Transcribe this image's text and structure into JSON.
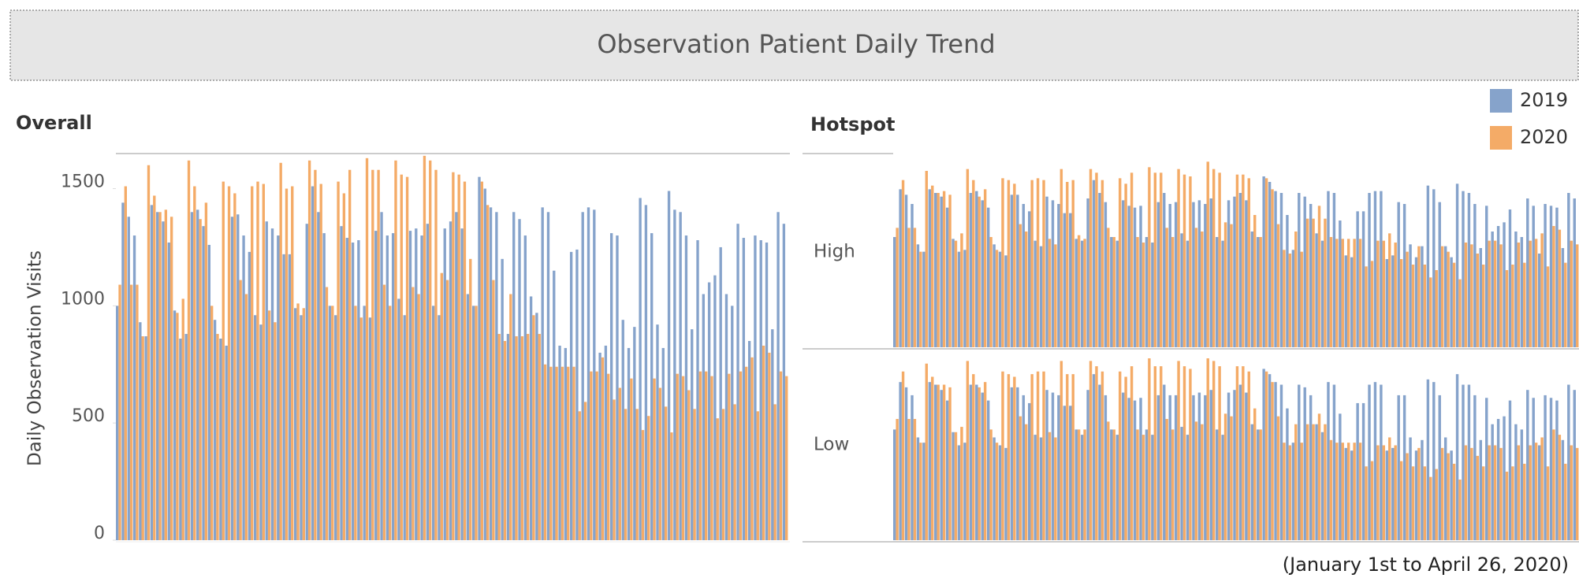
{
  "title": "Observation Patient Daily Trend",
  "note": "(January 1st to April 26, 2020)",
  "chart_data": [
    {
      "type": "bar",
      "title": "Overall",
      "y_label": "Daily Observation Visits",
      "ylim": [
        0,
        1700
      ],
      "yticks": [
        0,
        500,
        1000,
        1500
      ],
      "series": [
        {
          "name": "2019",
          "color": "#86a3cb",
          "values": [
            1000,
            1440,
            1380,
            1300,
            930,
            870,
            1430,
            1400,
            1360,
            1270,
            980,
            860,
            880,
            1400,
            1410,
            1340,
            1260,
            940,
            860,
            830,
            1380,
            1390,
            1300,
            1230,
            960,
            920,
            1360,
            1330,
            1300,
            1220,
            1220,
            990,
            960,
            1350,
            1510,
            1400,
            1310,
            1000,
            960,
            1340,
            1290,
            1270,
            1280,
            1000,
            950,
            1320,
            1400,
            1300,
            1310,
            1030,
            960,
            1320,
            1330,
            1300,
            1350,
            1000,
            960,
            1330,
            1360,
            1400,
            1330,
            1050,
            1000,
            1550,
            1500,
            1420,
            1400,
            1200,
            880,
            1400,
            1370,
            1300,
            1040,
            970,
            1420,
            1400,
            1150,
            830,
            820,
            1230,
            1240,
            1400,
            1420,
            1410,
            800,
            830,
            1310,
            1300,
            940,
            820,
            910,
            1460,
            1430,
            1310,
            920,
            820,
            1490,
            1410,
            1400,
            1300,
            900,
            1280,
            1050,
            1100,
            1130,
            1250,
            1050,
            1000,
            1350,
            1290,
            850,
            1300,
            1280,
            1270,
            900,
            1400,
            1350
          ]
        },
        {
          "name": "2020",
          "color": "#f4ab67",
          "values": [
            1090,
            1510,
            1090,
            1090,
            870,
            1600,
            1470,
            1400,
            1410,
            1380,
            970,
            1030,
            1620,
            1510,
            1370,
            1440,
            1000,
            880,
            1530,
            1510,
            1480,
            1110,
            1050,
            1510,
            1530,
            1520,
            980,
            930,
            1610,
            1500,
            1510,
            1010,
            990,
            1620,
            1580,
            1520,
            1080,
            1000,
            1530,
            1480,
            1580,
            1000,
            950,
            1630,
            1580,
            1580,
            1090,
            1000,
            1620,
            1560,
            1550,
            1080,
            1050,
            1640,
            1620,
            1580,
            1140,
            1110,
            1570,
            1560,
            1530,
            1200,
            1000,
            1530,
            1430,
            1110,
            880,
            850,
            1050,
            870,
            870,
            880,
            960,
            880,
            750,
            740,
            740,
            740,
            740,
            740,
            550,
            590,
            720,
            720,
            780,
            710,
            600,
            650,
            560,
            690,
            560,
            470,
            530,
            690,
            650,
            570,
            460,
            710,
            700,
            640,
            560,
            720,
            720,
            700,
            520,
            560,
            710,
            580,
            720,
            740,
            780,
            550,
            830,
            800,
            580,
            720,
            700
          ]
        }
      ]
    },
    {
      "type": "bar",
      "title": "Hotspot",
      "row": "High",
      "ylim": [
        0,
        1050
      ],
      "series": [
        {
          "color": "#86a3cb",
          "values": [
            600,
            860,
            830,
            780,
            560,
            520,
            860,
            840,
            820,
            760,
            590,
            520,
            530,
            840,
            850,
            800,
            760,
            560,
            520,
            500,
            830,
            830,
            780,
            740,
            580,
            550,
            820,
            800,
            780,
            730,
            730,
            590,
            580,
            810,
            910,
            840,
            790,
            600,
            580,
            800,
            770,
            760,
            770,
            600,
            570,
            790,
            840,
            780,
            790,
            620,
            580,
            790,
            800,
            780,
            810,
            600,
            580,
            800,
            820,
            840,
            800,
            630,
            600,
            930,
            900,
            850,
            840,
            720,
            530,
            840,
            820,
            780,
            620,
            580,
            850,
            840,
            690,
            500,
            490,
            740,
            740,
            840,
            850,
            850,
            480,
            500,
            790,
            780,
            560,
            490,
            550,
            880,
            860,
            790,
            550,
            490,
            890,
            850,
            840,
            780,
            540,
            770,
            630,
            660,
            680,
            750,
            630,
            600,
            810,
            770,
            510,
            780,
            770,
            760,
            540,
            840,
            810
          ]
        },
        {
          "color": "#f4ab67",
          "values": [
            650,
            910,
            650,
            650,
            520,
            960,
            880,
            840,
            850,
            830,
            580,
            620,
            970,
            910,
            820,
            860,
            600,
            530,
            920,
            910,
            890,
            670,
            630,
            910,
            920,
            910,
            590,
            560,
            970,
            900,
            910,
            610,
            590,
            970,
            950,
            910,
            650,
            600,
            920,
            890,
            950,
            600,
            570,
            980,
            950,
            950,
            650,
            600,
            970,
            940,
            930,
            650,
            630,
            1010,
            970,
            950,
            680,
            670,
            940,
            940,
            920,
            720,
            600,
            920,
            860,
            670,
            530,
            510,
            630,
            520,
            700,
            700,
            770,
            700,
            600,
            590,
            590,
            590,
            590,
            590,
            440,
            470,
            580,
            580,
            620,
            570,
            480,
            520,
            450,
            550,
            450,
            380,
            420,
            550,
            520,
            460,
            370,
            570,
            560,
            510,
            450,
            580,
            580,
            560,
            420,
            450,
            570,
            460,
            580,
            590,
            620,
            440,
            660,
            640,
            460,
            580,
            560
          ]
        }
      ]
    },
    {
      "type": "bar",
      "row": "Low",
      "ylim": [
        0,
        720
      ],
      "series": [
        {
          "color": "#86a3cb",
          "values": [
            420,
            600,
            580,
            550,
            390,
            370,
            600,
            590,
            570,
            530,
            410,
            360,
            370,
            590,
            590,
            560,
            530,
            390,
            360,
            350,
            580,
            580,
            550,
            520,
            400,
            390,
            570,
            560,
            550,
            510,
            510,
            420,
            400,
            570,
            630,
            590,
            550,
            420,
            400,
            560,
            540,
            530,
            540,
            420,
            400,
            550,
            590,
            550,
            550,
            430,
            400,
            550,
            560,
            550,
            570,
            420,
            400,
            560,
            570,
            590,
            560,
            440,
            420,
            650,
            630,
            600,
            590,
            500,
            370,
            590,
            580,
            550,
            440,
            410,
            600,
            590,
            480,
            350,
            340,
            520,
            520,
            590,
            600,
            590,
            340,
            350,
            550,
            550,
            390,
            340,
            380,
            610,
            600,
            550,
            390,
            340,
            630,
            590,
            590,
            550,
            380,
            540,
            440,
            460,
            470,
            530,
            440,
            420,
            570,
            540,
            360,
            550,
            540,
            530,
            380,
            590,
            570
          ]
        },
        {
          "color": "#f4ab67",
          "values": [
            460,
            640,
            460,
            460,
            370,
            670,
            620,
            590,
            590,
            580,
            410,
            430,
            680,
            630,
            580,
            600,
            420,
            370,
            640,
            630,
            620,
            470,
            440,
            630,
            640,
            640,
            410,
            390,
            680,
            630,
            630,
            420,
            420,
            680,
            660,
            640,
            450,
            420,
            640,
            620,
            660,
            420,
            400,
            690,
            660,
            660,
            460,
            420,
            680,
            660,
            650,
            450,
            440,
            690,
            680,
            660,
            480,
            470,
            660,
            660,
            640,
            500,
            420,
            640,
            600,
            470,
            370,
            360,
            440,
            370,
            440,
            440,
            480,
            440,
            380,
            370,
            370,
            370,
            370,
            370,
            280,
            300,
            360,
            360,
            390,
            360,
            300,
            330,
            280,
            350,
            280,
            240,
            270,
            350,
            330,
            290,
            230,
            360,
            350,
            320,
            280,
            360,
            360,
            350,
            260,
            280,
            360,
            290,
            360,
            370,
            390,
            280,
            420,
            400,
            290,
            360,
            350
          ]
        }
      ]
    }
  ]
}
